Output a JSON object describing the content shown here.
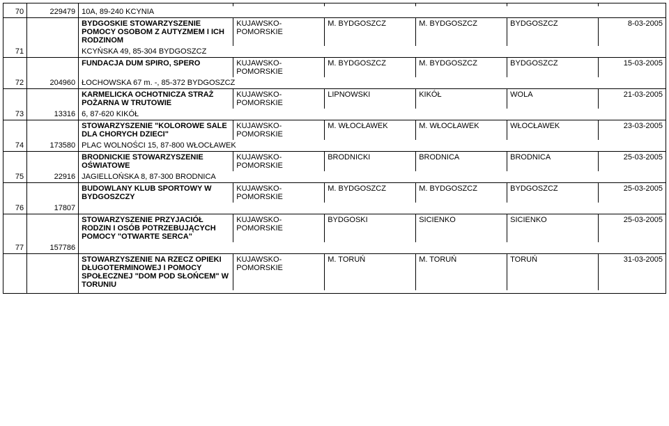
{
  "rows": [
    {
      "num": "70",
      "id": "229479",
      "name": "",
      "address": "10A,  89-240 KCYNIA",
      "region": "",
      "district": "",
      "city": "",
      "place": "",
      "date": ""
    },
    {
      "num": "71",
      "id": "",
      "name": "BYDGOSKIE STOWARZYSZENIE POMOCY OSOBOM Z AUTYZMEM I ICH RODZINOM",
      "address": "KCYŃSKA 49,  85-304 BYDGOSZCZ",
      "region": "KUJAWSKO-POMORSKIE",
      "district": "M. BYDGOSZCZ",
      "city": "M. BYDGOSZCZ",
      "place": "BYDGOSZCZ",
      "date": "8-03-2005"
    },
    {
      "num": "72",
      "id": "204960",
      "name": "FUNDACJA DUM SPIRO, SPERO",
      "address": "ŁOCHOWSKA 67 m. -,  85-372 BYDGOSZCZ",
      "region": "KUJAWSKO-POMORSKIE",
      "district": "M. BYDGOSZCZ",
      "city": "M. BYDGOSZCZ",
      "place": "BYDGOSZCZ",
      "date": "15-03-2005"
    },
    {
      "num": "73",
      "id": "13316",
      "name": "KARMELICKA OCHOTNICZA STRAŻ POŻARNA W TRUTOWIE",
      "address": "6,  87-620 KIKÓŁ",
      "region": "KUJAWSKO-POMORSKIE",
      "district": "LIPNOWSKI",
      "city": "KIKÓŁ",
      "place": "WOLA",
      "date": "21-03-2005"
    },
    {
      "num": "74",
      "id": "173580",
      "name": "STOWARZYSZENIE \"KOLOROWE SALE DLA CHORYCH DZIECI\"",
      "address": "PLAC WOLNOŚCI 15,  87-800 WŁOCŁAWEK",
      "region": "KUJAWSKO-POMORSKIE",
      "district": "M. WŁOCŁAWEK",
      "city": "M. WŁOCŁAWEK",
      "place": "WŁOCŁAWEK",
      "date": "23-03-2005"
    },
    {
      "num": "75",
      "id": "22916",
      "name": "BRODNICKIE STOWARZYSZENIE OŚWIATOWE",
      "address": "JAGIELLOŃSKA 8,  87-300 BRODNICA",
      "region": "KUJAWSKO-POMORSKIE",
      "district": "BRODNICKI",
      "city": "BRODNICA",
      "place": "BRODNICA",
      "date": "25-03-2005"
    },
    {
      "num": "76",
      "id": "17807",
      "name": "BUDOWLANY KLUB SPORTOWY W BYDGOSZCZY",
      "address": "",
      "region": "KUJAWSKO-POMORSKIE",
      "district": "M. BYDGOSZCZ",
      "city": "M. BYDGOSZCZ",
      "place": "BYDGOSZCZ",
      "date": "25-03-2005"
    },
    {
      "num": "77",
      "id": "157786",
      "name": "STOWARZYSZENIE PRZYJACIÓŁ RODZIN I OSÓB POTRZEBUJĄCYCH POMOCY \"OTWARTE SERCA\"",
      "address": "",
      "region": "KUJAWSKO-POMORSKIE",
      "district": "BYDGOSKI",
      "city": "SICIENKO",
      "place": "SICIENKO",
      "date": "25-03-2005"
    },
    {
      "num": "",
      "id": "",
      "name": "STOWARZYSZENIE NA RZECZ OPIEKI DŁUGOTERMINOWEJ I POMOCY SPOŁECZNEJ \"DOM POD SŁOŃCEM\" W TORUNIU",
      "address": "",
      "region": "KUJAWSKO-POMORSKIE",
      "district": "M. TORUŃ",
      "city": "M. TORUŃ",
      "place": "TORUŃ",
      "date": "31-03-2005"
    }
  ]
}
